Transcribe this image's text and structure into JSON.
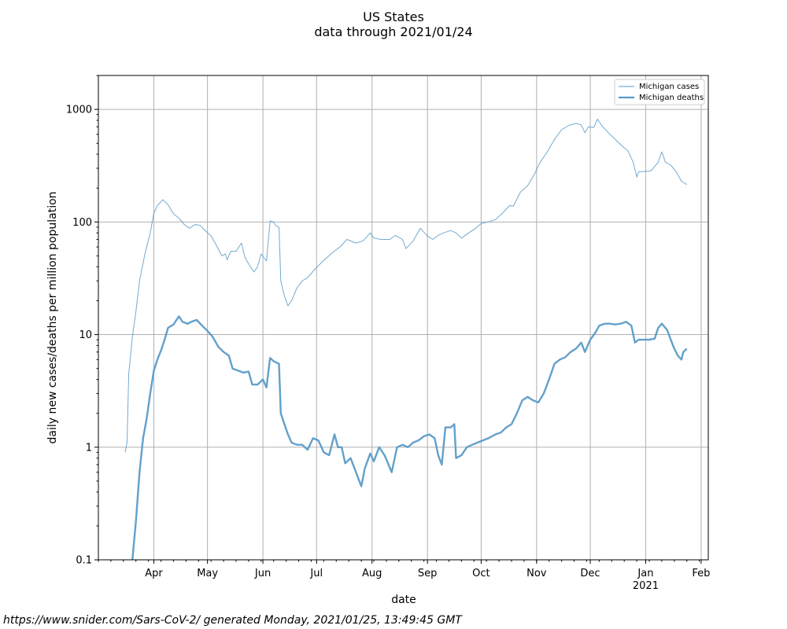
{
  "chart_data": {
    "type": "line",
    "title": "US States",
    "subtitle": "data through 2021/01/24",
    "xlabel": "date",
    "ylabel": "daily new cases/deaths per million population",
    "yscale": "log",
    "ylim": [
      0.1,
      2000
    ],
    "xlim": [
      "2020-03-01",
      "2021-02-05"
    ],
    "grid": true,
    "legend_position": "top-right",
    "x_ticks": [
      {
        "date": "2020-04-01",
        "label": "Apr",
        "sublabel": ""
      },
      {
        "date": "2020-05-01",
        "label": "May",
        "sublabel": ""
      },
      {
        "date": "2020-06-01",
        "label": "Jun",
        "sublabel": ""
      },
      {
        "date": "2020-07-01",
        "label": "Jul",
        "sublabel": ""
      },
      {
        "date": "2020-08-01",
        "label": "Aug",
        "sublabel": ""
      },
      {
        "date": "2020-09-01",
        "label": "Sep",
        "sublabel": ""
      },
      {
        "date": "2020-10-01",
        "label": "Oct",
        "sublabel": ""
      },
      {
        "date": "2020-11-01",
        "label": "Nov",
        "sublabel": ""
      },
      {
        "date": "2020-12-01",
        "label": "Dec",
        "sublabel": ""
      },
      {
        "date": "2021-01-01",
        "label": "Jan",
        "sublabel": "2021"
      },
      {
        "date": "2021-02-01",
        "label": "Feb",
        "sublabel": ""
      }
    ],
    "y_ticks": [
      {
        "value": 0.1,
        "label": "0.1"
      },
      {
        "value": 1,
        "label": "1"
      },
      {
        "value": 10,
        "label": "10"
      },
      {
        "value": 100,
        "label": "100"
      },
      {
        "value": 1000,
        "label": "1000"
      }
    ],
    "series": [
      {
        "name": "Michigan cases",
        "color": "#5b9bc8",
        "style": "thin",
        "points": [
          [
            "2020-03-16",
            0.9
          ],
          [
            "2020-03-17",
            1.1
          ],
          [
            "2020-03-18",
            4.5
          ],
          [
            "2020-03-20",
            9.5
          ],
          [
            "2020-03-22",
            16
          ],
          [
            "2020-03-24",
            30
          ],
          [
            "2020-03-27",
            52
          ],
          [
            "2020-03-30",
            80
          ],
          [
            "2020-04-01",
            120
          ],
          [
            "2020-04-03",
            140
          ],
          [
            "2020-04-06",
            158
          ],
          [
            "2020-04-09",
            142
          ],
          [
            "2020-04-12",
            118
          ],
          [
            "2020-04-15",
            108
          ],
          [
            "2020-04-18",
            95
          ],
          [
            "2020-04-21",
            88
          ],
          [
            "2020-04-24",
            95
          ],
          [
            "2020-04-27",
            93
          ],
          [
            "2020-04-30",
            83
          ],
          [
            "2020-05-03",
            75
          ],
          [
            "2020-05-06",
            62
          ],
          [
            "2020-05-09",
            50
          ],
          [
            "2020-05-11",
            52
          ],
          [
            "2020-05-12",
            46
          ],
          [
            "2020-05-14",
            55
          ],
          [
            "2020-05-17",
            55
          ],
          [
            "2020-05-20",
            65
          ],
          [
            "2020-05-22",
            48
          ],
          [
            "2020-05-25",
            40
          ],
          [
            "2020-05-27",
            36
          ],
          [
            "2020-05-29",
            40
          ],
          [
            "2020-05-31",
            52
          ],
          [
            "2020-06-03",
            45
          ],
          [
            "2020-06-05",
            102
          ],
          [
            "2020-06-07",
            100
          ],
          [
            "2020-06-08",
            93
          ],
          [
            "2020-06-10",
            90
          ],
          [
            "2020-06-11",
            30
          ],
          [
            "2020-06-13",
            22
          ],
          [
            "2020-06-15",
            18
          ],
          [
            "2020-06-17",
            20
          ],
          [
            "2020-06-20",
            26
          ],
          [
            "2020-06-23",
            30
          ],
          [
            "2020-06-26",
            32
          ],
          [
            "2020-06-30",
            38
          ],
          [
            "2020-07-04",
            44
          ],
          [
            "2020-07-09",
            52
          ],
          [
            "2020-07-14",
            60
          ],
          [
            "2020-07-18",
            70
          ],
          [
            "2020-07-23",
            65
          ],
          [
            "2020-07-27",
            68
          ],
          [
            "2020-07-31",
            80
          ],
          [
            "2020-08-02",
            72
          ],
          [
            "2020-08-06",
            70
          ],
          [
            "2020-08-11",
            70
          ],
          [
            "2020-08-14",
            76
          ],
          [
            "2020-08-18",
            70
          ],
          [
            "2020-08-20",
            58
          ],
          [
            "2020-08-24",
            68
          ],
          [
            "2020-08-28",
            88
          ],
          [
            "2020-09-01",
            75
          ],
          [
            "2020-09-04",
            70
          ],
          [
            "2020-09-07",
            76
          ],
          [
            "2020-09-10",
            80
          ],
          [
            "2020-09-14",
            84
          ],
          [
            "2020-09-17",
            80
          ],
          [
            "2020-09-20",
            72
          ],
          [
            "2020-09-24",
            80
          ],
          [
            "2020-09-28",
            88
          ],
          [
            "2020-10-01",
            97
          ],
          [
            "2020-10-05",
            100
          ],
          [
            "2020-10-09",
            105
          ],
          [
            "2020-10-13",
            120
          ],
          [
            "2020-10-17",
            140
          ],
          [
            "2020-10-19",
            138
          ],
          [
            "2020-10-21",
            160
          ],
          [
            "2020-10-23",
            185
          ],
          [
            "2020-10-27",
            210
          ],
          [
            "2020-10-31",
            270
          ],
          [
            "2020-11-03",
            340
          ],
          [
            "2020-11-07",
            420
          ],
          [
            "2020-11-11",
            540
          ],
          [
            "2020-11-15",
            660
          ],
          [
            "2020-11-19",
            720
          ],
          [
            "2020-11-23",
            750
          ],
          [
            "2020-11-26",
            730
          ],
          [
            "2020-11-28",
            620
          ],
          [
            "2020-11-30",
            700
          ],
          [
            "2020-12-03",
            690
          ],
          [
            "2020-12-05",
            820
          ],
          [
            "2020-12-08",
            700
          ],
          [
            "2020-12-12",
            600
          ],
          [
            "2020-12-15",
            540
          ],
          [
            "2020-12-19",
            470
          ],
          [
            "2020-12-22",
            430
          ],
          [
            "2020-12-25",
            340
          ],
          [
            "2020-12-27",
            250
          ],
          [
            "2020-12-28",
            280
          ],
          [
            "2020-12-31",
            280
          ],
          [
            "2021-01-04",
            285
          ],
          [
            "2021-01-08",
            340
          ],
          [
            "2021-01-10",
            420
          ],
          [
            "2021-01-12",
            340
          ],
          [
            "2021-01-15",
            320
          ],
          [
            "2021-01-18",
            280
          ],
          [
            "2021-01-21",
            230
          ],
          [
            "2021-01-24",
            215
          ]
        ]
      },
      {
        "name": "Michigan deaths",
        "color": "#5b9bc8",
        "style": "thick",
        "points": [
          [
            "2020-03-20",
            0.1
          ],
          [
            "2020-03-22",
            0.22
          ],
          [
            "2020-03-24",
            0.6
          ],
          [
            "2020-03-26",
            1.2
          ],
          [
            "2020-03-28",
            1.8
          ],
          [
            "2020-03-30",
            3.0
          ],
          [
            "2020-04-01",
            4.8
          ],
          [
            "2020-04-03",
            6.0
          ],
          [
            "2020-04-05",
            7.2
          ],
          [
            "2020-04-07",
            9.0
          ],
          [
            "2020-04-09",
            11.5
          ],
          [
            "2020-04-12",
            12.3
          ],
          [
            "2020-04-15",
            14.5
          ],
          [
            "2020-04-17",
            13.0
          ],
          [
            "2020-04-20",
            12.5
          ],
          [
            "2020-04-22",
            13.0
          ],
          [
            "2020-04-25",
            13.5
          ],
          [
            "2020-04-28",
            12.0
          ],
          [
            "2020-05-01",
            10.8
          ],
          [
            "2020-05-04",
            9.5
          ],
          [
            "2020-05-07",
            7.8
          ],
          [
            "2020-05-10",
            7.0
          ],
          [
            "2020-05-13",
            6.5
          ],
          [
            "2020-05-15",
            5.0
          ],
          [
            "2020-05-18",
            4.8
          ],
          [
            "2020-05-21",
            4.6
          ],
          [
            "2020-05-24",
            4.7
          ],
          [
            "2020-05-26",
            3.6
          ],
          [
            "2020-05-29",
            3.6
          ],
          [
            "2020-06-01",
            4.0
          ],
          [
            "2020-06-03",
            3.4
          ],
          [
            "2020-06-05",
            6.2
          ],
          [
            "2020-06-07",
            5.8
          ],
          [
            "2020-06-10",
            5.5
          ],
          [
            "2020-06-11",
            2.0
          ],
          [
            "2020-06-13",
            1.6
          ],
          [
            "2020-06-15",
            1.3
          ],
          [
            "2020-06-17",
            1.1
          ],
          [
            "2020-06-20",
            1.05
          ],
          [
            "2020-06-23",
            1.05
          ],
          [
            "2020-06-26",
            0.95
          ],
          [
            "2020-06-29",
            1.2
          ],
          [
            "2020-07-02",
            1.15
          ],
          [
            "2020-07-05",
            0.9
          ],
          [
            "2020-07-08",
            0.85
          ],
          [
            "2020-07-11",
            1.3
          ],
          [
            "2020-07-13",
            1.0
          ],
          [
            "2020-07-15",
            1.0
          ],
          [
            "2020-07-17",
            0.72
          ],
          [
            "2020-07-20",
            0.8
          ],
          [
            "2020-07-23",
            0.6
          ],
          [
            "2020-07-26",
            0.45
          ],
          [
            "2020-07-28",
            0.65
          ],
          [
            "2020-07-31",
            0.88
          ],
          [
            "2020-08-02",
            0.75
          ],
          [
            "2020-08-05",
            1.0
          ],
          [
            "2020-08-08",
            0.85
          ],
          [
            "2020-08-12",
            0.6
          ],
          [
            "2020-08-15",
            1.0
          ],
          [
            "2020-08-18",
            1.05
          ],
          [
            "2020-08-21",
            1.0
          ],
          [
            "2020-08-24",
            1.1
          ],
          [
            "2020-08-27",
            1.15
          ],
          [
            "2020-08-30",
            1.25
          ],
          [
            "2020-09-02",
            1.3
          ],
          [
            "2020-09-05",
            1.2
          ],
          [
            "2020-09-07",
            0.85
          ],
          [
            "2020-09-09",
            0.7
          ],
          [
            "2020-09-11",
            1.5
          ],
          [
            "2020-09-14",
            1.5
          ],
          [
            "2020-09-16",
            1.6
          ],
          [
            "2020-09-17",
            0.8
          ],
          [
            "2020-09-20",
            0.85
          ],
          [
            "2020-09-23",
            1.0
          ],
          [
            "2020-09-26",
            1.05
          ],
          [
            "2020-09-29",
            1.1
          ],
          [
            "2020-10-02",
            1.15
          ],
          [
            "2020-10-05",
            1.2
          ],
          [
            "2020-10-09",
            1.3
          ],
          [
            "2020-10-12",
            1.35
          ],
          [
            "2020-10-15",
            1.5
          ],
          [
            "2020-10-18",
            1.6
          ],
          [
            "2020-10-21",
            2.0
          ],
          [
            "2020-10-24",
            2.6
          ],
          [
            "2020-10-27",
            2.8
          ],
          [
            "2020-10-30",
            2.6
          ],
          [
            "2020-11-02",
            2.5
          ],
          [
            "2020-11-05",
            3.0
          ],
          [
            "2020-11-08",
            4.0
          ],
          [
            "2020-11-11",
            5.5
          ],
          [
            "2020-11-14",
            6.0
          ],
          [
            "2020-11-17",
            6.3
          ],
          [
            "2020-11-20",
            7.0
          ],
          [
            "2020-11-23",
            7.5
          ],
          [
            "2020-11-26",
            8.5
          ],
          [
            "2020-11-28",
            7.0
          ],
          [
            "2020-12-01",
            9.0
          ],
          [
            "2020-12-04",
            10.5
          ],
          [
            "2020-12-06",
            12.0
          ],
          [
            "2020-12-09",
            12.5
          ],
          [
            "2020-12-12",
            12.5
          ],
          [
            "2020-12-15",
            12.3
          ],
          [
            "2020-12-18",
            12.5
          ],
          [
            "2020-12-21",
            13.0
          ],
          [
            "2020-12-24",
            12.0
          ],
          [
            "2020-12-26",
            8.5
          ],
          [
            "2020-12-28",
            9.0
          ],
          [
            "2020-12-31",
            9.0
          ],
          [
            "2021-01-03",
            9.0
          ],
          [
            "2021-01-06",
            9.2
          ],
          [
            "2021-01-08",
            11.5
          ],
          [
            "2021-01-10",
            12.5
          ],
          [
            "2021-01-13",
            11.0
          ],
          [
            "2021-01-15",
            9.0
          ],
          [
            "2021-01-17",
            7.5
          ],
          [
            "2021-01-19",
            6.5
          ],
          [
            "2021-01-21",
            6.0
          ],
          [
            "2021-01-22",
            7.0
          ],
          [
            "2021-01-24",
            7.5
          ]
        ]
      }
    ]
  },
  "footer": "https://www.snider.com/Sars-CoV-2/ generated Monday, 2021/01/25, 13:49:45 GMT"
}
